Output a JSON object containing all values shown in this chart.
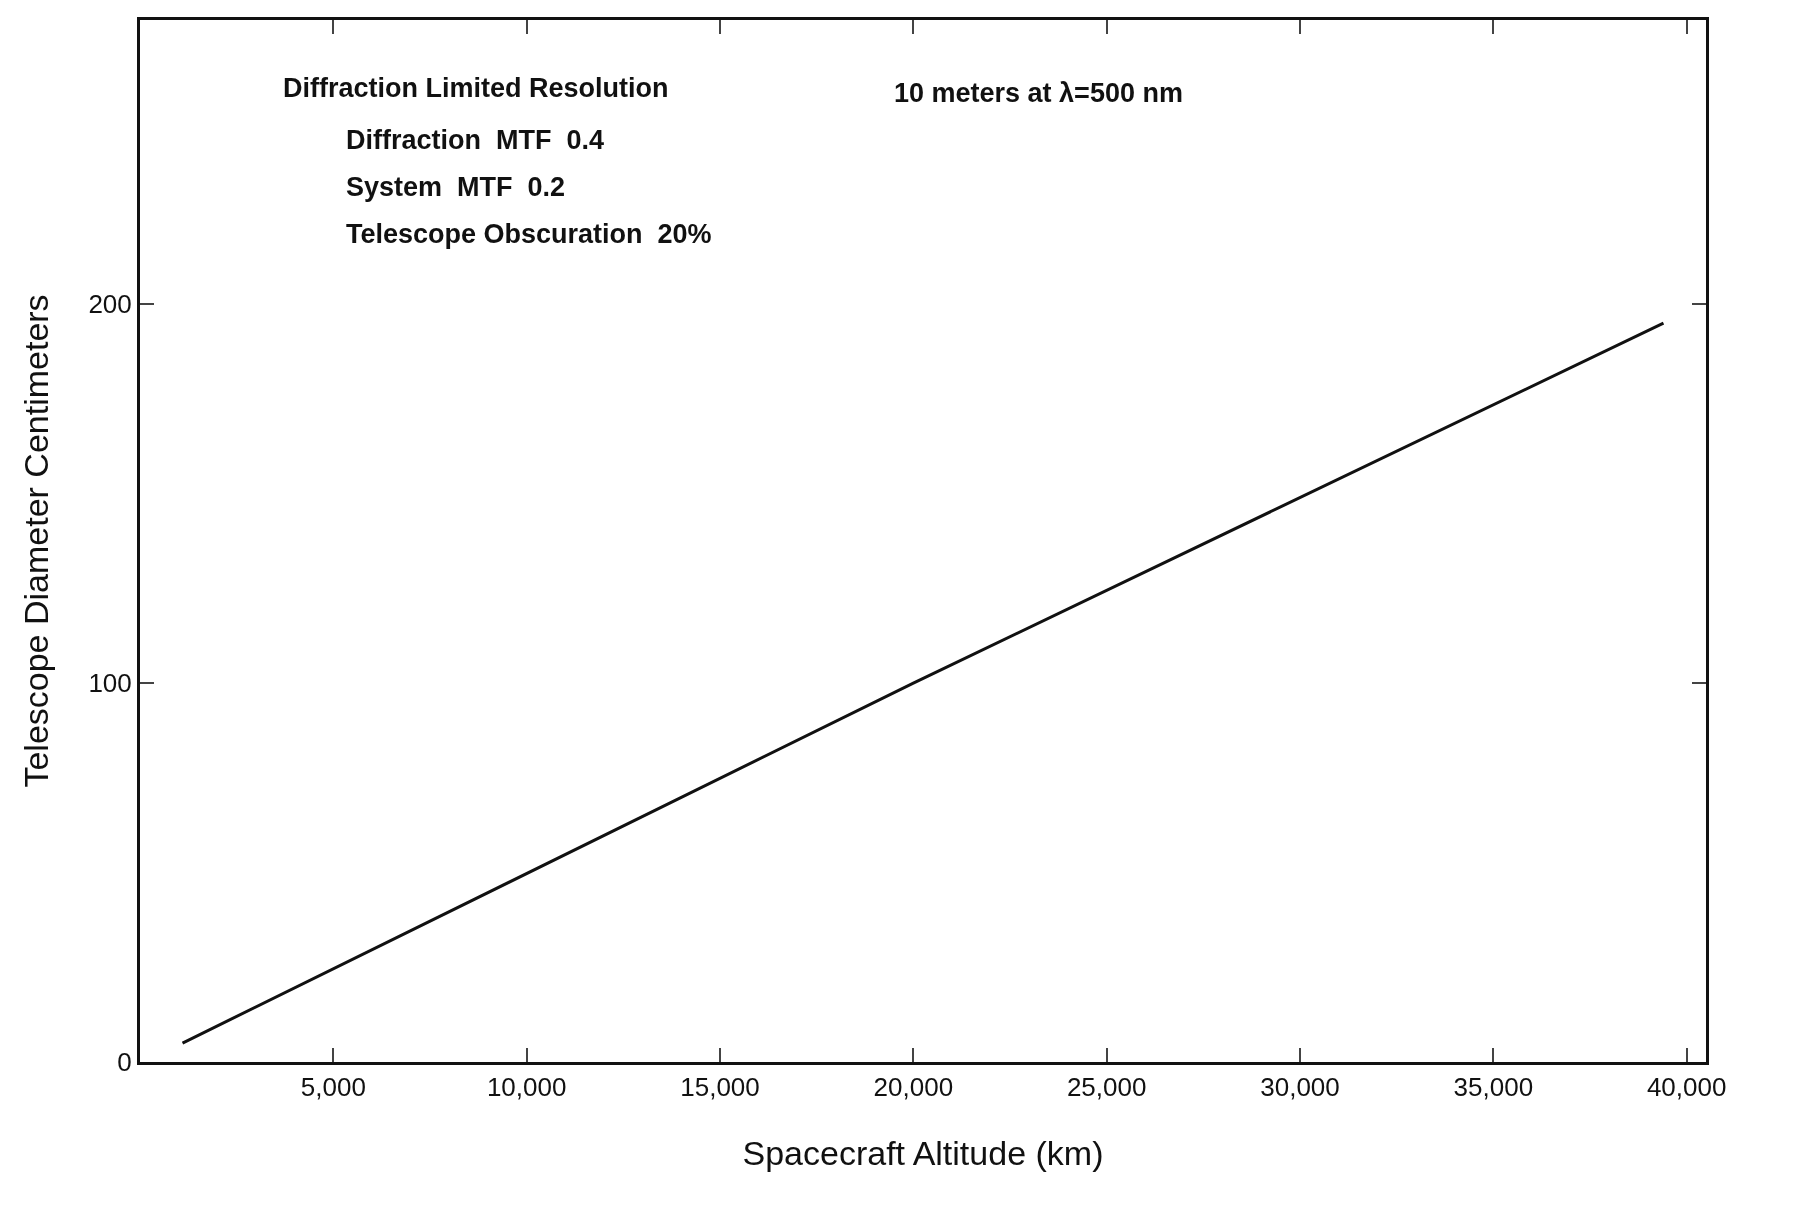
{
  "chart_data": {
    "type": "line",
    "xlabel": "Spacecraft Altitude (km)",
    "ylabel": "Telescope Diameter Centimeters",
    "x": [
      1100,
      20000,
      39400
    ],
    "series": [
      {
        "color": "#111111",
        "values": [
          5,
          100,
          195
        ]
      }
    ],
    "xlim": [
      0,
      40500
    ],
    "ylim": [
      0,
      275
    ],
    "xticks": [
      {
        "value": 5000,
        "label": "5,000"
      },
      {
        "value": 10000,
        "label": "10,000"
      },
      {
        "value": 15000,
        "label": "15,000"
      },
      {
        "value": 20000,
        "label": "20,000"
      },
      {
        "value": 25000,
        "label": "25,000"
      },
      {
        "value": 30000,
        "label": "30,000"
      },
      {
        "value": 35000,
        "label": "35,000"
      },
      {
        "value": 40000,
        "label": "40,000"
      }
    ],
    "yticks": [
      0,
      100,
      200
    ],
    "grid": false,
    "marker": "none",
    "line_style": "solid",
    "annotations": [
      "Diffraction Limited Resolution",
      "10 meters at λ=500 nm",
      "Diffraction  MTF  0.4",
      "System  MTF  0.2",
      "Telescope Obscuration  20%"
    ]
  }
}
